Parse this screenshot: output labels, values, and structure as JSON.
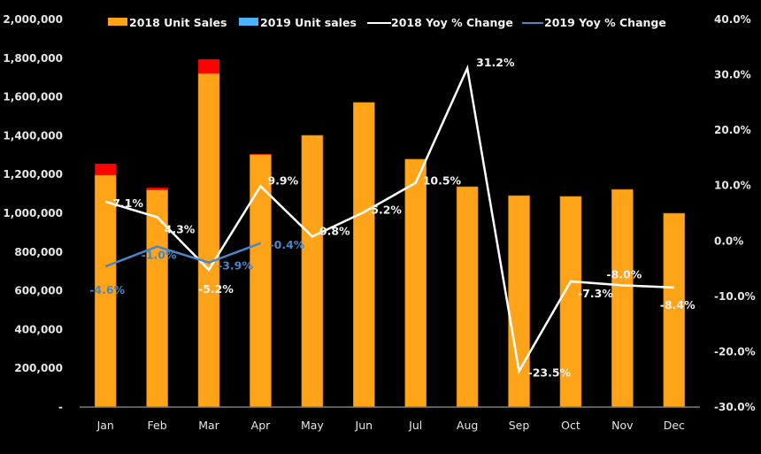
{
  "chart_data": {
    "type": "bar",
    "title": "",
    "categories": [
      "Jan",
      "Feb",
      "Mar",
      "Apr",
      "May",
      "Jun",
      "Jul",
      "Aug",
      "Sep",
      "Oct",
      "Nov",
      "Dec"
    ],
    "series": [
      {
        "name": "2018 Unit Sales",
        "kind": "bar",
        "axis": "left",
        "color": "#FFA319",
        "values": [
          1196000,
          1120000,
          1721000,
          1302000,
          1402000,
          1572000,
          1279000,
          1137000,
          1091000,
          1087000,
          1123000,
          1000000
        ]
      },
      {
        "name": "2019 Unit sales",
        "kind": "bar",
        "axis": "left",
        "color": "#4DB3FF",
        "overflow_color": "#FF0000",
        "values": [
          1256000,
          1132000,
          1795000,
          1306000
        ]
      },
      {
        "name": "2018 Yoy % Change",
        "kind": "line",
        "axis": "right",
        "color": "#FFFFFF",
        "values": [
          7.1,
          4.3,
          -5.2,
          9.9,
          0.8,
          5.2,
          10.5,
          31.2,
          -23.5,
          -7.3,
          -8.0,
          -8.4
        ],
        "labels": [
          "7.1%",
          "4.3%",
          "-5.2%",
          "9.9%",
          "0.8%",
          "5.2%",
          "10.5%",
          "31.2%",
          "-23.5%",
          "-7.3%",
          "-8.0%",
          "-8.4%"
        ]
      },
      {
        "name": "2019 Yoy % Change",
        "kind": "line",
        "axis": "right",
        "color": "#4A86C8",
        "values": [
          -4.6,
          -1.0,
          -3.9,
          -0.4
        ],
        "labels": [
          "-4.6%",
          "-1.0%",
          "-3.9%",
          "-0.4%"
        ]
      }
    ],
    "y_left": {
      "min": 0,
      "max": 2000000,
      "step": 200000,
      "tick_labels": [
        "-",
        "200,000",
        "400,000",
        "600,000",
        "800,000",
        "1,000,000",
        "1,200,000",
        "1,400,000",
        "1,600,000",
        "1,800,000",
        "2,000,000"
      ]
    },
    "y_right": {
      "min": -30,
      "max": 40,
      "step": 10,
      "tick_labels": [
        "-30.0%",
        "-20.0%",
        "-10.0%",
        "0.0%",
        "10.0%",
        "20.0%",
        "30.0%",
        "40.0%"
      ]
    },
    "xlabel": "",
    "ylabel": "",
    "grid": false,
    "legend_position": "top",
    "background": "#000000"
  }
}
